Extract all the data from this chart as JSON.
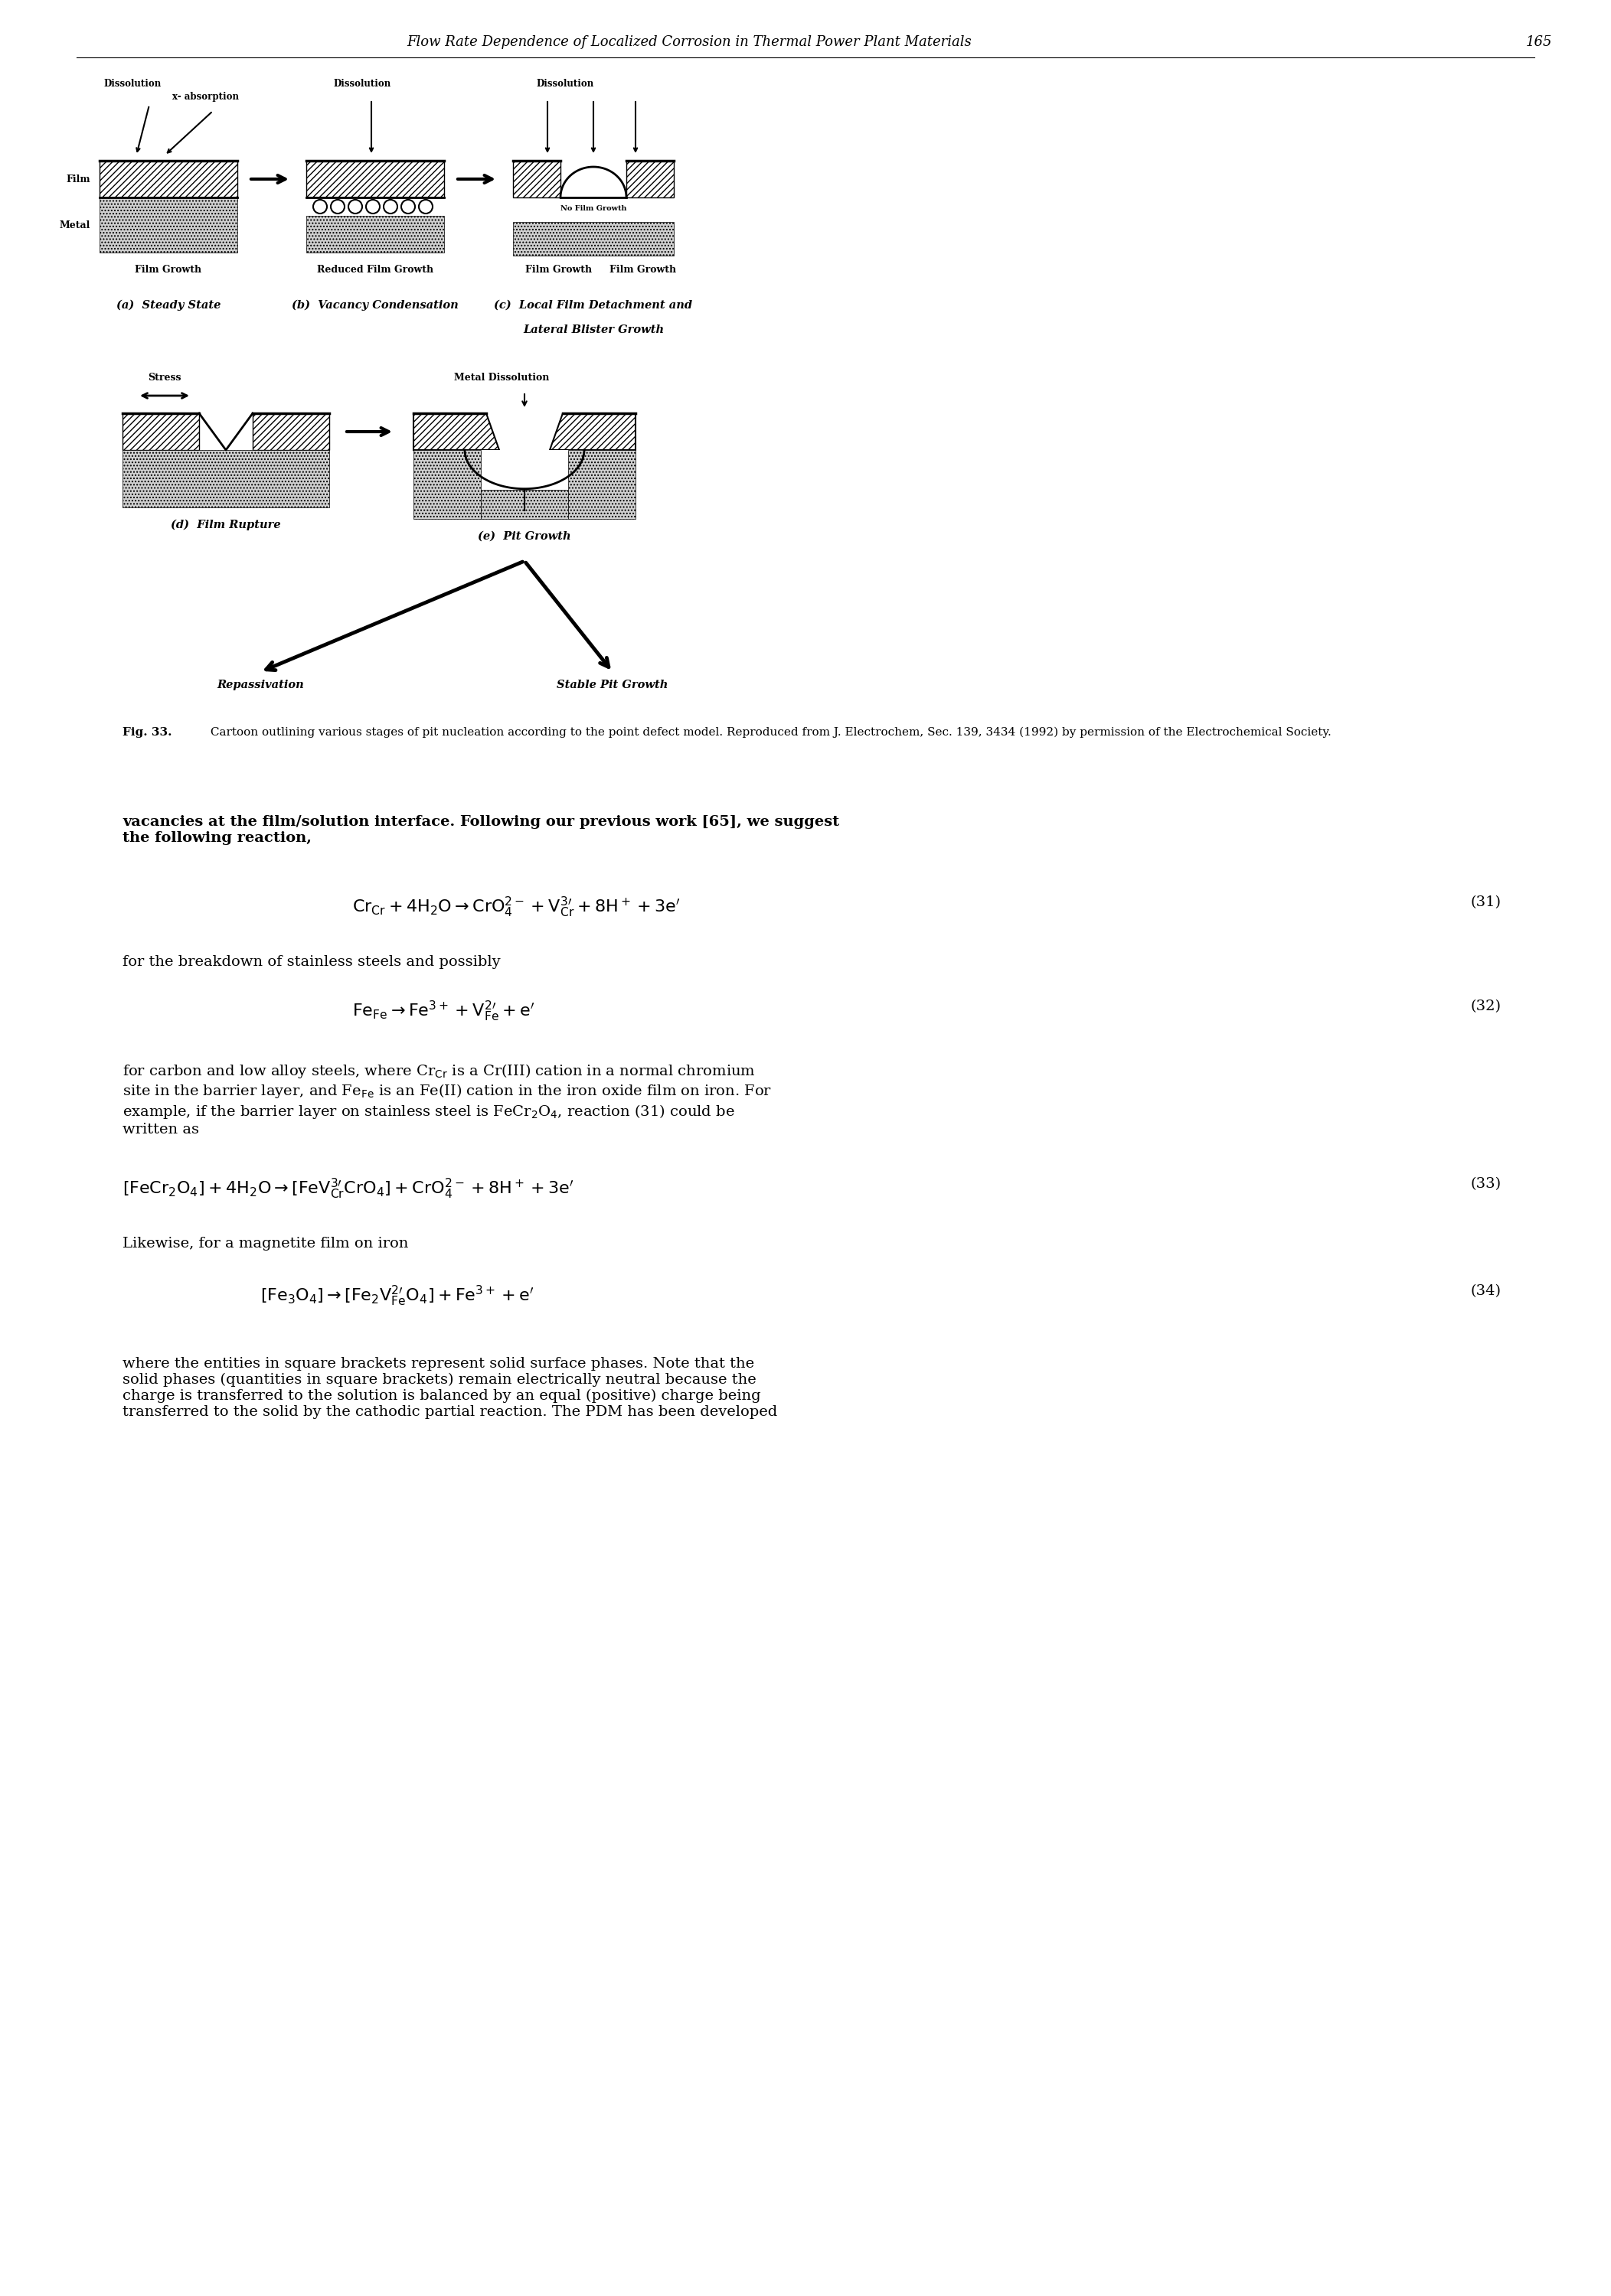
{
  "page_header": "Flow Rate Dependence of Localized Corrosion in Thermal Power Plant Materials",
  "page_number": "165",
  "fig_caption_bold": "Fig. 33.",
  "fig_caption_rest": " Cartoon outlining various stages of pit nucleation according to the point defect model. Reproduced from J. Electrochem, Sec. 139, 3434 (1992) by permission of the Electrochemical Society.",
  "body_text_1": "vacancies at the film/solution interface. Following our previous work [65], we suggest\nthe following reaction,",
  "eq31_num": "(31)",
  "eq32_num": "(32)",
  "body_text_2": "for the breakdown of stainless steels and possibly",
  "eq33_num": "(33)",
  "body_text_4": "Likewise, for a magnetite film on iron",
  "eq34_num": "(34)",
  "body_text_5": "where the entities in square brackets represent solid surface phases. Note that the\nsolid phases (quantities in square brackets) remain electrically neutral because the\ncharge is transferred to the solution is balanced by an equal (positive) charge being\ntransferred to the solid by the cathodic partial reaction. The PDM has been developed"
}
